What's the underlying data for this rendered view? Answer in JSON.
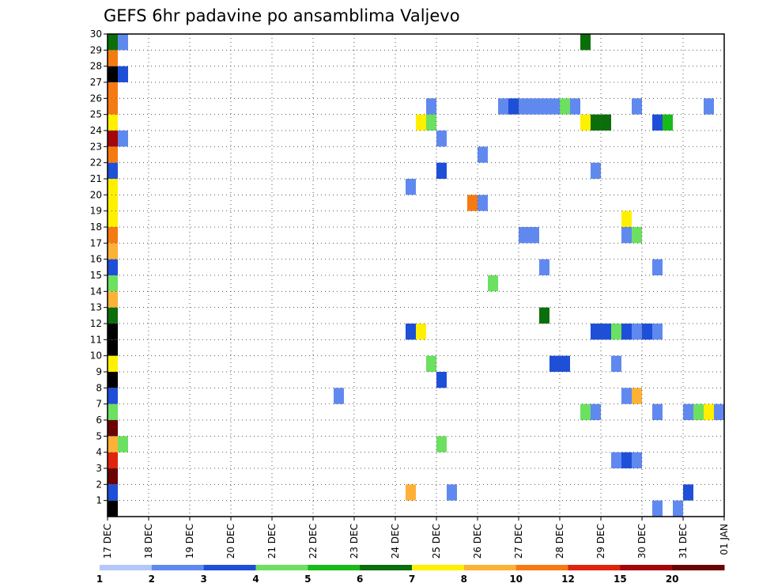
{
  "chart_data": {
    "type": "heatmap",
    "title": "GEFS 6hr padavine po ansamblima Valjevo",
    "x_tick_labels": [
      "17 DEC",
      "18 DEC",
      "19 DEC",
      "20 DEC",
      "21 DEC",
      "22 DEC",
      "23 DEC",
      "24 DEC",
      "25 DEC",
      "26 DEC",
      "27 DEC",
      "28 DEC",
      "29 DEC",
      "30 DEC",
      "31 DEC",
      "01 JAN"
    ],
    "y_tick_labels": [
      "1",
      "2",
      "3",
      "4",
      "5",
      "6",
      "7",
      "8",
      "9",
      "10",
      "11",
      "12",
      "13",
      "14",
      "15",
      "16",
      "17",
      "18",
      "19",
      "20",
      "21",
      "22",
      "23",
      "24",
      "25",
      "26",
      "27",
      "28",
      "29",
      "30"
    ],
    "x_unit": "6-hour step from 17 DEC 00Z",
    "ylim": [
      0,
      30
    ],
    "grid": true,
    "colorbar": {
      "labels": [
        "1",
        "2",
        "3",
        "4",
        "5",
        "6",
        "7",
        "8",
        "10",
        "12",
        "15",
        "20"
      ],
      "colors": [
        "#b4c8f8",
        "#6089f0",
        "#1e4fd8",
        "#6ce060",
        "#19bb19",
        "#0a6f0a",
        "#fff000",
        "#fdb136",
        "#f67a12",
        "#e0240c",
        "#a4060a",
        "#6a0404"
      ]
    },
    "cells": [
      [
        0,
        0,
        12
      ],
      [
        0,
        1,
        2
      ],
      [
        0,
        2,
        11
      ],
      [
        0,
        3,
        9
      ],
      [
        0,
        4,
        7
      ],
      [
        0,
        5,
        11
      ],
      [
        0,
        6,
        3
      ],
      [
        0,
        7,
        2
      ],
      [
        0,
        8,
        13
      ],
      [
        0,
        9,
        6
      ],
      [
        0,
        10,
        20
      ],
      [
        0,
        11,
        14
      ],
      [
        0,
        12,
        5
      ],
      [
        0,
        13,
        7
      ],
      [
        0,
        14,
        3
      ],
      [
        0,
        15,
        2
      ],
      [
        0,
        16,
        7
      ],
      [
        0,
        17,
        8
      ],
      [
        0,
        18,
        6
      ],
      [
        0,
        19,
        6
      ],
      [
        0,
        20,
        6
      ],
      [
        0,
        21,
        2
      ],
      [
        0,
        22,
        8
      ],
      [
        0,
        23,
        10
      ],
      [
        0,
        24,
        6
      ],
      [
        0,
        25,
        8
      ],
      [
        0,
        26,
        8
      ],
      [
        0,
        27,
        13
      ],
      [
        0,
        28,
        8
      ],
      [
        0,
        29,
        5
      ],
      [
        1,
        4,
        3
      ],
      [
        1,
        23,
        1
      ],
      [
        1,
        27,
        2
      ],
      [
        1,
        29,
        1
      ],
      [
        22,
        7,
        1
      ],
      [
        29,
        1,
        7
      ],
      [
        29,
        11,
        2
      ],
      [
        29,
        20,
        1
      ],
      [
        30,
        11,
        6
      ],
      [
        30,
        24,
        6
      ],
      [
        31,
        9,
        3
      ],
      [
        31,
        24,
        3
      ],
      [
        31,
        25,
        1
      ],
      [
        32,
        4,
        3
      ],
      [
        32,
        8,
        2
      ],
      [
        32,
        21,
        2
      ],
      [
        32,
        23,
        1
      ],
      [
        33,
        1,
        1
      ],
      [
        35,
        19,
        8
      ],
      [
        36,
        19,
        1
      ],
      [
        36,
        22,
        1
      ],
      [
        37,
        14,
        3
      ],
      [
        38,
        25,
        1
      ],
      [
        39,
        25,
        2
      ],
      [
        40,
        17,
        1
      ],
      [
        40,
        25,
        1
      ],
      [
        41,
        17,
        1
      ],
      [
        41,
        25,
        1
      ],
      [
        42,
        12,
        5
      ],
      [
        42,
        15,
        1
      ],
      [
        42,
        25,
        1
      ],
      [
        43,
        9,
        2
      ],
      [
        43,
        25,
        1
      ],
      [
        44,
        9,
        2
      ],
      [
        44,
        25,
        3
      ],
      [
        45,
        25,
        1
      ],
      [
        46,
        6,
        3
      ],
      [
        46,
        24,
        6
      ],
      [
        46,
        29,
        5
      ],
      [
        47,
        6,
        1
      ],
      [
        47,
        11,
        2
      ],
      [
        47,
        21,
        1
      ],
      [
        47,
        24,
        5
      ],
      [
        48,
        11,
        2
      ],
      [
        48,
        24,
        5
      ],
      [
        49,
        3,
        1
      ],
      [
        49,
        9,
        1
      ],
      [
        49,
        11,
        3
      ],
      [
        50,
        3,
        2
      ],
      [
        50,
        7,
        1
      ],
      [
        50,
        11,
        2
      ],
      [
        50,
        17,
        1
      ],
      [
        50,
        18,
        6
      ],
      [
        51,
        3,
        1
      ],
      [
        51,
        7,
        7
      ],
      [
        51,
        11,
        1
      ],
      [
        51,
        17,
        3
      ],
      [
        51,
        25,
        1
      ],
      [
        52,
        11,
        2
      ],
      [
        53,
        0,
        1
      ],
      [
        53,
        6,
        1
      ],
      [
        53,
        11,
        1
      ],
      [
        53,
        15,
        1
      ],
      [
        53,
        24,
        2
      ],
      [
        54,
        24,
        4
      ],
      [
        55,
        0,
        1
      ],
      [
        56,
        1,
        2
      ],
      [
        56,
        6,
        1
      ],
      [
        57,
        6,
        3
      ],
      [
        58,
        6,
        6
      ],
      [
        58,
        25,
        1
      ],
      [
        59,
        6,
        1
      ]
    ]
  }
}
